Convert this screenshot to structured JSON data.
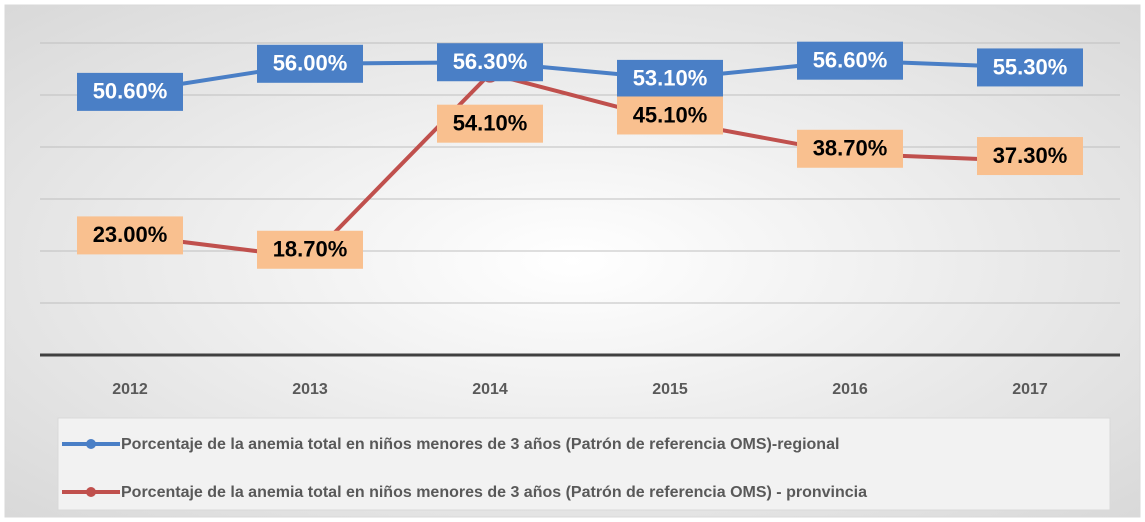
{
  "chart_data": {
    "type": "line",
    "categories": [
      "2012",
      "2013",
      "2014",
      "2015",
      "2016",
      "2017"
    ],
    "series": [
      {
        "name": "Porcentaje de la anemia total en niños menores de 3 años (Patrón de referencia OMS)-regional",
        "color": "#4a7fc6",
        "values": [
          50.6,
          56.0,
          56.3,
          53.1,
          56.6,
          55.3
        ],
        "value_labels": [
          "50.60%",
          "56.00%",
          "56.30%",
          "53.10%",
          "56.60%",
          "55.30%"
        ]
      },
      {
        "name": "Porcentaje de la anemia total en niños menores de 3 años (Patrón de referencia OMS) - pronvincia",
        "color": "#c0504d",
        "values": [
          23.0,
          18.7,
          54.1,
          45.1,
          38.7,
          37.3
        ],
        "value_labels": [
          "23.00%",
          "18.70%",
          "54.10%",
          "45.10%",
          "38.70%",
          "37.30%"
        ]
      }
    ],
    "ylim": [
      0,
      60
    ],
    "yticks": [
      0,
      10,
      20,
      30,
      40,
      50,
      60
    ],
    "grid": true
  }
}
